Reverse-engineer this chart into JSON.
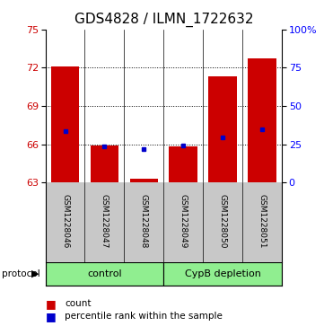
{
  "title": "GDS4828 / ILMN_1722632",
  "samples": [
    "GSM1228046",
    "GSM1228047",
    "GSM1228048",
    "GSM1228049",
    "GSM1228050",
    "GSM1228051"
  ],
  "count_values": [
    72.1,
    65.9,
    63.3,
    65.8,
    71.35,
    72.75
  ],
  "percentile_values": [
    67.05,
    65.85,
    65.62,
    65.88,
    66.55,
    67.15
  ],
  "ylim_left": [
    63,
    75
  ],
  "ylim_right": [
    0,
    100
  ],
  "yticks_left": [
    63,
    66,
    69,
    72,
    75
  ],
  "yticks_right": [
    0,
    25,
    50,
    75,
    100
  ],
  "ytick_labels_right": [
    "0",
    "25",
    "50",
    "75",
    "100%"
  ],
  "bar_color": "#cc0000",
  "dot_color": "#0000cc",
  "bar_bottom": 63,
  "bar_width": 0.72,
  "control_color": "#90ee90",
  "depletion_color": "#90ee90",
  "label_area_color": "#c8c8c8",
  "title_fontsize": 11,
  "tick_fontsize": 8,
  "legend_fontsize": 7.5
}
